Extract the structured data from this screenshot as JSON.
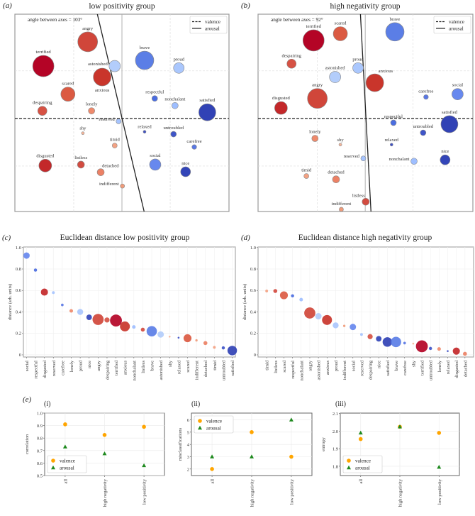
{
  "emotion_styles": {
    "terrified": {
      "color": "#b40426",
      "magnitude": 15
    },
    "angry": {
      "color": "#d0463a",
      "magnitude": 14
    },
    "anxious": {
      "color": "#c9352b",
      "magnitude": 12.5
    },
    "disgusted": {
      "color": "#c3282a",
      "magnitude": 9
    },
    "scared": {
      "color": "#db5a42",
      "magnitude": 10
    },
    "despairing": {
      "color": "#d65244",
      "magnitude": 6.5
    },
    "listless": {
      "color": "#d24b40",
      "magnitude": 5
    },
    "lonely": {
      "color": "#ef8a6c",
      "magnitude": 4.5
    },
    "detached": {
      "color": "#ec8165",
      "magnitude": 5
    },
    "timid": {
      "color": "#f3a283",
      "magnitude": 3.5
    },
    "indifferent": {
      "color": "#f09b7a",
      "magnitude": 3
    },
    "shy": {
      "color": "#f5b59a",
      "magnitude": 2
    },
    "astonished": {
      "color": "#b3cdfb",
      "magnitude": 8
    },
    "proud": {
      "color": "#aac7fd",
      "magnitude": 7.5
    },
    "reserved": {
      "color": "#a5c3fe",
      "magnitude": 3.5
    },
    "nonchalant": {
      "color": "#9ebeff",
      "magnitude": 4.5
    },
    "brave": {
      "color": "#5b7ee6",
      "magnitude": 13
    },
    "social": {
      "color": "#6788ee",
      "magnitude": 8
    },
    "respectful": {
      "color": "#4b6de0",
      "magnitude": 4
    },
    "carefree": {
      "color": "#5a78e4",
      "magnitude": 3.3
    },
    "untroubled": {
      "color": "#3f55c8",
      "magnitude": 4
    },
    "relaxed": {
      "color": "#3f51c5",
      "magnitude": 2
    },
    "nice": {
      "color": "#3345b8",
      "magnitude": 7
    },
    "satisfied": {
      "color": "#3142b5",
      "magnitude": 12
    }
  },
  "chart_data": [
    {
      "id": "a",
      "panel_label": "(a)",
      "type": "scatter",
      "title": "low positivity group",
      "annotation": "angle between axes = 103°",
      "legend": {
        "placement": "top-right",
        "items": [
          {
            "label": "valence",
            "style": "dashed"
          },
          {
            "label": "arousal",
            "style": "solid"
          }
        ]
      },
      "xlim": [
        -2.22,
        2.22
      ],
      "ylim": [
        -1.955,
        2.19
      ],
      "grid": true,
      "arousal_axis": [
        [
          -0.51,
          2.19
        ],
        [
          0.46,
          -1.955
        ]
      ],
      "valence_axis_y": 0,
      "points": [
        {
          "label": "angry",
          "x": -0.71,
          "y": 1.61,
          "label_pos": "above"
        },
        {
          "label": "terrified",
          "x": -1.63,
          "y": 1.1,
          "label_pos": "above"
        },
        {
          "label": "astonished",
          "x": -0.15,
          "y": 1.1,
          "label_pos": "left"
        },
        {
          "label": "anxious",
          "x": -0.41,
          "y": 0.87,
          "label_pos": "below"
        },
        {
          "label": "brave",
          "x": 0.47,
          "y": 1.22,
          "label_pos": "above"
        },
        {
          "label": "proud",
          "x": 1.18,
          "y": 1.06,
          "label_pos": "above"
        },
        {
          "label": "scared",
          "x": -1.12,
          "y": 0.51,
          "label_pos": "above"
        },
        {
          "label": "respectful",
          "x": 0.68,
          "y": 0.42,
          "label_pos": "above"
        },
        {
          "label": "nonchalant",
          "x": 1.1,
          "y": 0.27,
          "label_pos": "above"
        },
        {
          "label": "satisfied",
          "x": 1.77,
          "y": 0.13,
          "label_pos": "above"
        },
        {
          "label": "despairing",
          "x": -1.65,
          "y": 0.16,
          "label_pos": "above"
        },
        {
          "label": "lonely",
          "x": -0.63,
          "y": 0.16,
          "label_pos": "above"
        },
        {
          "label": "reserved",
          "x": -0.07,
          "y": -0.06,
          "label_pos": "left"
        },
        {
          "label": "shy",
          "x": -0.81,
          "y": -0.31,
          "label_pos": "above"
        },
        {
          "label": "relaxed",
          "x": 0.47,
          "y": -0.28,
          "label_pos": "above"
        },
        {
          "label": "untroubled",
          "x": 1.07,
          "y": -0.33,
          "label_pos": "above"
        },
        {
          "label": "timid",
          "x": -0.15,
          "y": -0.57,
          "label_pos": "above"
        },
        {
          "label": "carefree",
          "x": 1.5,
          "y": -0.6,
          "label_pos": "above"
        },
        {
          "label": "disgusted",
          "x": -1.59,
          "y": -0.99,
          "label_pos": "above"
        },
        {
          "label": "listless",
          "x": -0.85,
          "y": -0.97,
          "label_pos": "above"
        },
        {
          "label": "detached",
          "x": -0.44,
          "y": -1.13,
          "label_pos": "above-right"
        },
        {
          "label": "social",
          "x": 0.69,
          "y": -0.97,
          "label_pos": "above"
        },
        {
          "label": "nice",
          "x": 1.32,
          "y": -1.12,
          "label_pos": "above"
        },
        {
          "label": "indifferent",
          "x": 0.01,
          "y": -1.42,
          "label_pos": "left"
        }
      ]
    },
    {
      "id": "b",
      "panel_label": "(b)",
      "type": "scatter",
      "title": "high negativity group",
      "annotation": "angle between axes = 92°",
      "legend": {
        "placement": "top-right",
        "items": [
          {
            "label": "valence",
            "style": "dashed"
          },
          {
            "label": "arousal",
            "style": "solid"
          }
        ]
      },
      "xlim": [
        -2.24,
        2.25
      ],
      "ylim": [
        -1.955,
        2.19
      ],
      "grid": true,
      "arousal_axis": [
        [
          -0.1,
          2.19
        ],
        [
          0.12,
          -1.955
        ]
      ],
      "valence_axis_y": 0,
      "points": [
        {
          "label": "terrified",
          "x": -1.08,
          "y": 1.64,
          "label_pos": "above"
        },
        {
          "label": "scared",
          "x": -0.52,
          "y": 1.78,
          "label_pos": "above"
        },
        {
          "label": "brave",
          "x": 0.62,
          "y": 1.82,
          "label_pos": "above"
        },
        {
          "label": "despairing",
          "x": -1.54,
          "y": 1.15,
          "label_pos": "above"
        },
        {
          "label": "proud",
          "x": -0.15,
          "y": 1.06,
          "label_pos": "above"
        },
        {
          "label": "astonished",
          "x": -0.63,
          "y": 0.87,
          "label_pos": "above"
        },
        {
          "label": "anxious",
          "x": 0.2,
          "y": 0.75,
          "label_pos": "above-right"
        },
        {
          "label": "angry",
          "x": -1.0,
          "y": 0.42,
          "label_pos": "above"
        },
        {
          "label": "disgusted",
          "x": -1.76,
          "y": 0.22,
          "label_pos": "above"
        },
        {
          "label": "carefree",
          "x": 1.27,
          "y": 0.45,
          "label_pos": "above"
        },
        {
          "label": "social",
          "x": 1.93,
          "y": 0.51,
          "label_pos": "above"
        },
        {
          "label": "satisfied",
          "x": 1.76,
          "y": -0.12,
          "label_pos": "above"
        },
        {
          "label": "respectful",
          "x": 0.59,
          "y": -0.09,
          "label_pos": "above"
        },
        {
          "label": "untroubled",
          "x": 1.21,
          "y": -0.3,
          "label_pos": "above"
        },
        {
          "label": "lonely",
          "x": -1.05,
          "y": -0.42,
          "label_pos": "above"
        },
        {
          "label": "shy",
          "x": -0.52,
          "y": -0.55,
          "label_pos": "above"
        },
        {
          "label": "relaxed",
          "x": 0.55,
          "y": -0.55,
          "label_pos": "above"
        },
        {
          "label": "reserved",
          "x": -0.04,
          "y": -0.84,
          "label_pos": "left"
        },
        {
          "label": "nonchalant",
          "x": 1.02,
          "y": -0.9,
          "label_pos": "left"
        },
        {
          "label": "nice",
          "x": 1.67,
          "y": -0.87,
          "label_pos": "above"
        },
        {
          "label": "timid",
          "x": -1.23,
          "y": -1.21,
          "label_pos": "above"
        },
        {
          "label": "detached",
          "x": -0.61,
          "y": -1.28,
          "label_pos": "above"
        },
        {
          "label": "listless",
          "x": 0.01,
          "y": -1.75,
          "label_pos": "above-left"
        },
        {
          "label": "indifferent",
          "x": -0.5,
          "y": -1.91,
          "label_pos": "above"
        }
      ]
    },
    {
      "id": "c",
      "panel_label": "(c)",
      "type": "scatter",
      "title": "Euclidean distance low positivity group",
      "xlabel": "",
      "ylabel": "distance (arb. units)",
      "ylim": [
        -0.02,
        1.005
      ],
      "grid": true,
      "yticks": [
        0,
        0.2,
        0.4,
        0.6,
        0.8,
        1.0
      ],
      "ytick_labels": [
        "0",
        "0.2",
        "0.4",
        "0.6",
        "0.8",
        "1.0"
      ],
      "categories": [
        "social",
        "respectful",
        "disgusted",
        "reserved",
        "carefree",
        "lonely",
        "proud",
        "nice",
        "angry",
        "despairing",
        "terrified",
        "anxious",
        "nonchalant",
        "listless",
        "brave",
        "astonished",
        "shy",
        "relaxed",
        "scared",
        "indifferent",
        "detached",
        "timid",
        "untroubled",
        "satisfied"
      ],
      "values": [
        0.925,
        0.79,
        0.585,
        0.58,
        0.465,
        0.41,
        0.4,
        0.35,
        0.33,
        0.325,
        0.32,
        0.265,
        0.26,
        0.235,
        0.22,
        0.19,
        0.17,
        0.16,
        0.155,
        0.135,
        0.11,
        0.07,
        0.065,
        0.04
      ]
    },
    {
      "id": "d",
      "panel_label": "(d)",
      "type": "scatter",
      "title": "Euclidean distance high negativity group",
      "xlabel": "",
      "ylabel": "distance (arb. units)",
      "ylim": [
        -0.02,
        1.005
      ],
      "grid": true,
      "yticks": [
        0,
        0.2,
        0.4,
        0.6,
        0.8,
        1.0
      ],
      "ytick_labels": [
        "0",
        "0.2",
        "0.4",
        "0.6",
        "0.8",
        "1.0"
      ],
      "categories": [
        "timid",
        "listless",
        "scared",
        "respectful",
        "nonchalant",
        "angry",
        "astonished",
        "anxious",
        "proud",
        "indifferent",
        "social",
        "reserved",
        "despairing",
        "nice",
        "satisfied",
        "brave",
        "carefree",
        "shy",
        "terrified",
        "untroubled",
        "lonely",
        "relaxed",
        "disgusted",
        "detached"
      ],
      "values": [
        0.595,
        0.595,
        0.555,
        0.55,
        0.515,
        0.39,
        0.36,
        0.325,
        0.275,
        0.27,
        0.26,
        0.19,
        0.17,
        0.15,
        0.12,
        0.12,
        0.11,
        0.105,
        0.08,
        0.06,
        0.055,
        0.035,
        0.035,
        0.01
      ]
    },
    {
      "id": "e-i",
      "panel_label": "(e)",
      "subpanel_label": "(i)",
      "type": "scatter",
      "ylabel": "correlation",
      "ylim": [
        0.5,
        1.0
      ],
      "grid": true,
      "yticks": [
        0.5,
        0.6,
        0.7,
        0.8,
        0.9,
        1.0
      ],
      "ytick_labels": [
        "0.5",
        "0.6",
        "0.7",
        "0.8",
        "0.9",
        "1.0"
      ],
      "categories": [
        "all",
        "high negativity",
        "low positivity"
      ],
      "legend_placement": "lower-left",
      "series": [
        {
          "name": "valence",
          "marker": "circle",
          "color": "#ffa500",
          "values": [
            0.91,
            0.825,
            0.89
          ]
        },
        {
          "name": "arousal",
          "marker": "triangle",
          "color": "#1f8a1f",
          "values": [
            0.73,
            0.675,
            0.58
          ]
        }
      ]
    },
    {
      "id": "e-ii",
      "subpanel_label": "(ii)",
      "type": "scatter",
      "ylabel": "misclassifications",
      "ylim": [
        1.47,
        6.55
      ],
      "grid": true,
      "yticks": [
        2,
        3,
        4,
        5,
        6
      ],
      "ytick_labels": [
        "2",
        "3",
        "4",
        "5",
        "6"
      ],
      "categories": [
        "all",
        "high negativity",
        "low positivity"
      ],
      "legend_placement": "upper-left",
      "series": [
        {
          "name": "valence",
          "marker": "circle",
          "color": "#ffa500",
          "values": [
            2,
            5,
            3
          ]
        },
        {
          "name": "arousal",
          "marker": "triangle",
          "color": "#1f8a1f",
          "values": [
            3,
            3,
            6
          ]
        }
      ]
    },
    {
      "id": "e-iii",
      "subpanel_label": "(iii)",
      "type": "scatter",
      "ylabel": "entropy",
      "ylim": [
        1.747,
        2.103
      ],
      "grid": true,
      "yticks": [
        1.8,
        1.9,
        2.0,
        2.1
      ],
      "ytick_labels": [
        "1.8",
        "1.9",
        "2.0",
        "2.1"
      ],
      "categories": [
        "all",
        "high negativity",
        "low positivity"
      ],
      "legend_placement": "lower-left",
      "series": [
        {
          "name": "valence",
          "marker": "circle",
          "color": "#ffa500",
          "values": [
            1.955,
            2.025,
            1.99
          ]
        },
        {
          "name": "arousal",
          "marker": "triangle",
          "color": "#1f8a1f",
          "values": [
            1.99,
            2.025,
            1.795
          ]
        }
      ]
    }
  ]
}
